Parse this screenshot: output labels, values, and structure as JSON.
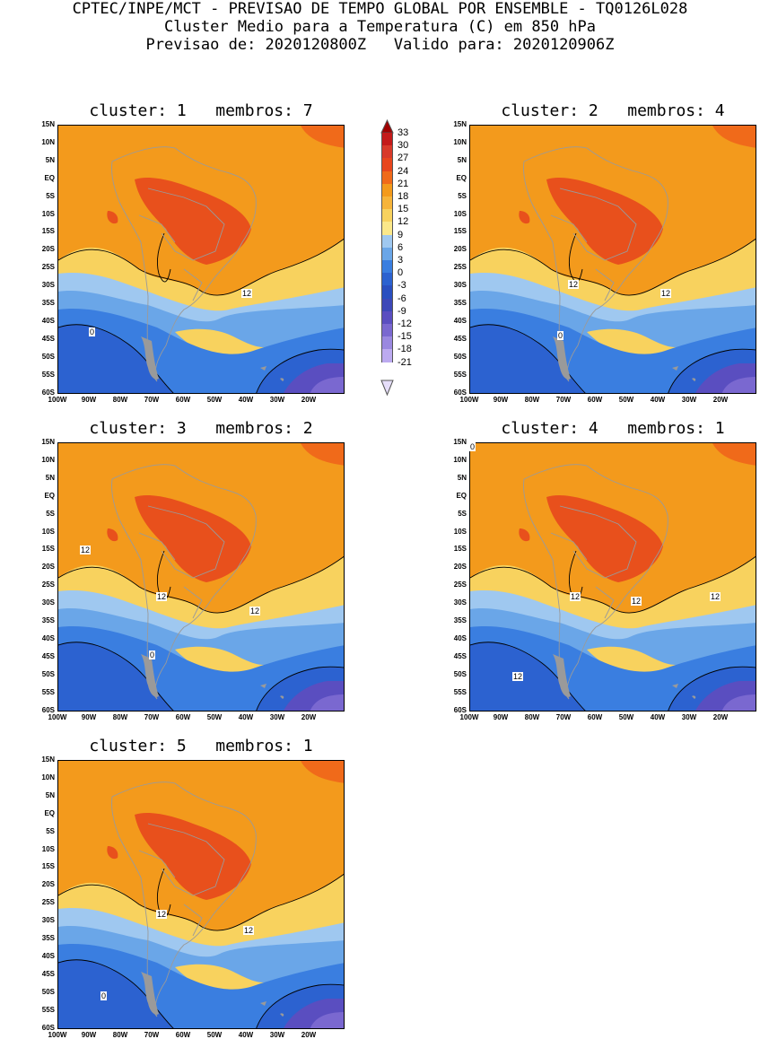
{
  "header": {
    "line1": "CPTEC/INPE/MCT - PREVISAO DE TEMPO GLOBAL POR ENSEMBLE - TQ0126L028",
    "line2": "Cluster Medio para a Temperatura (C) em 850 hPa",
    "line3": "Previsao de: 2020120800Z   Valido para: 2020120906Z"
  },
  "axes": {
    "lat_labels": [
      "15N",
      "10N",
      "5N",
      "EQ",
      "5S",
      "10S",
      "15S",
      "20S",
      "25S",
      "30S",
      "35S",
      "40S",
      "45S",
      "50S",
      "55S",
      "60S"
    ],
    "lon_labels": [
      "100W",
      "90W",
      "80W",
      "70W",
      "60W",
      "50W",
      "40W",
      "30W",
      "20W"
    ]
  },
  "colorbar": {
    "labels": [
      "33",
      "30",
      "27",
      "24",
      "21",
      "18",
      "15",
      "12",
      "9",
      "6",
      "3",
      "0",
      "-3",
      "-6",
      "-9",
      "-12",
      "-15",
      "-18",
      "-21"
    ],
    "colors": [
      "#a00000",
      "#c41a1a",
      "#d83a2a",
      "#e8461e",
      "#f06a1a",
      "#f39a1c",
      "#f6b43a",
      "#f8d25e",
      "#fbe88a",
      "#9fc8f0",
      "#6aa6e8",
      "#3a7ee0",
      "#2c62d0",
      "#2a4fc0",
      "#3d48b8",
      "#5a4ec0",
      "#7a68d0",
      "#9a88e0",
      "#bcaaf0"
    ]
  },
  "clusters": [
    {
      "title": "cluster: 1   membros: 7",
      "contour_labels": [
        "12",
        "0"
      ]
    },
    {
      "title": "cluster: 2   membros: 4",
      "contour_labels": [
        "12",
        "12",
        "0"
      ]
    },
    {
      "title": "cluster: 3   membros: 2",
      "contour_labels": [
        "12",
        "12",
        "12",
        "0"
      ]
    },
    {
      "title": "cluster: 4   membros: 1",
      "contour_labels": [
        "12",
        "12",
        "12",
        "12",
        "0"
      ]
    },
    {
      "title": "cluster: 5   membros: 1",
      "contour_labels": [
        "12",
        "12",
        "0"
      ]
    }
  ]
}
